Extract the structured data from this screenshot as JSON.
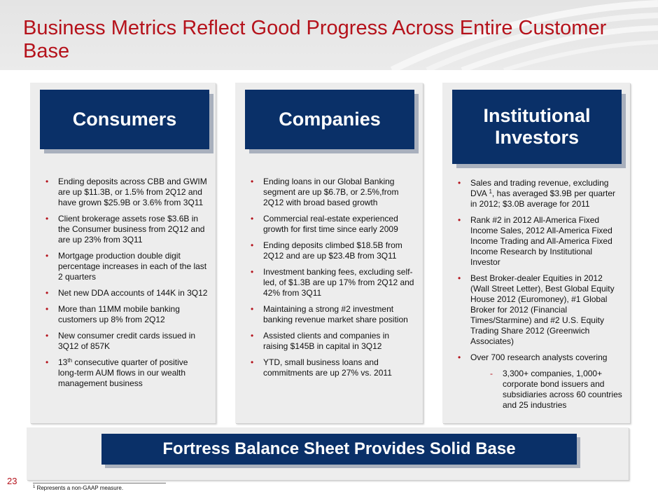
{
  "slide": {
    "title": "Business Metrics Reflect Good Progress Across Entire Customer Base",
    "page_number": "23"
  },
  "consumers": {
    "heading": "Consumers",
    "bullets": [
      "Ending deposits across CBB and GWIM are up $11.3B, or 1.5% from 2Q12 and have grown $25.9B or 3.6% from 3Q11",
      "Client brokerage assets rose $3.6B in the Consumer business from 2Q12 and are up 23% from 3Q11",
      "Mortgage production double digit percentage increases in each of the last 2 quarters",
      "Net new DDA accounts of 144K in 3Q12",
      "More than 11MM mobile banking customers up 8% from 2Q12",
      "New consumer credit cards issued in 3Q12 of 857K"
    ],
    "last_bullet": {
      "prefix": "13",
      "sup": "th",
      "rest": " consecutive quarter of positive long-term AUM flows in our wealth management business"
    }
  },
  "companies": {
    "heading": "Companies",
    "bullets": [
      "Ending loans in our Global Banking segment are up $6.7B, or 2.5%,from 2Q12 with broad based growth",
      "Commercial real-estate experienced growth for first time since early 2009",
      "Ending deposits climbed $18.5B from 2Q12 and are up $23.4B from 3Q11",
      "Investment banking fees, excluding self-led, of $1.3B are up 17% from 2Q12 and 42% from 3Q11",
      "Maintaining a strong #2 investment banking revenue market share position",
      "Assisted clients and companies in raising $145B in capital in 3Q12",
      "YTD, small business loans and commitments are up 27% vs. 2011"
    ]
  },
  "institutional": {
    "heading": "Institutional Investors",
    "first_bullet": {
      "prefix": "Sales and trading revenue, excluding DVA ",
      "sup": "1",
      "rest": ", has averaged $3.9B per quarter in 2012; $3.0B average for 2011"
    },
    "bullets": [
      "Rank #2 in 2012 All-America Fixed Income Sales, 2012 All-America Fixed Income Trading and All-America Fixed Income Research by Institutional Investor",
      "Best Broker-dealer Equities in 2012 (Wall Street Letter), Best Global Equity House 2012 (Euromoney), #1 Global Broker for 2012 (Financial Times/Starmine) and #2 U.S. Equity Trading Share 2012 (Greenwich Associates)",
      "Over 700 research analysts covering"
    ],
    "sub_bullet": "3,300+ companies, 1,000+ corporate bond issuers and subsidiaries across 60 countries and 25 industries"
  },
  "banner": {
    "text": "Fortress Balance Sheet Provides Solid Base"
  },
  "footnote": {
    "marker": "1",
    "text": " Represents a non-GAAP measure."
  },
  "colors": {
    "title_red": "#b5121b",
    "navy": "#0a3068",
    "panel_gray": "#ededed"
  }
}
